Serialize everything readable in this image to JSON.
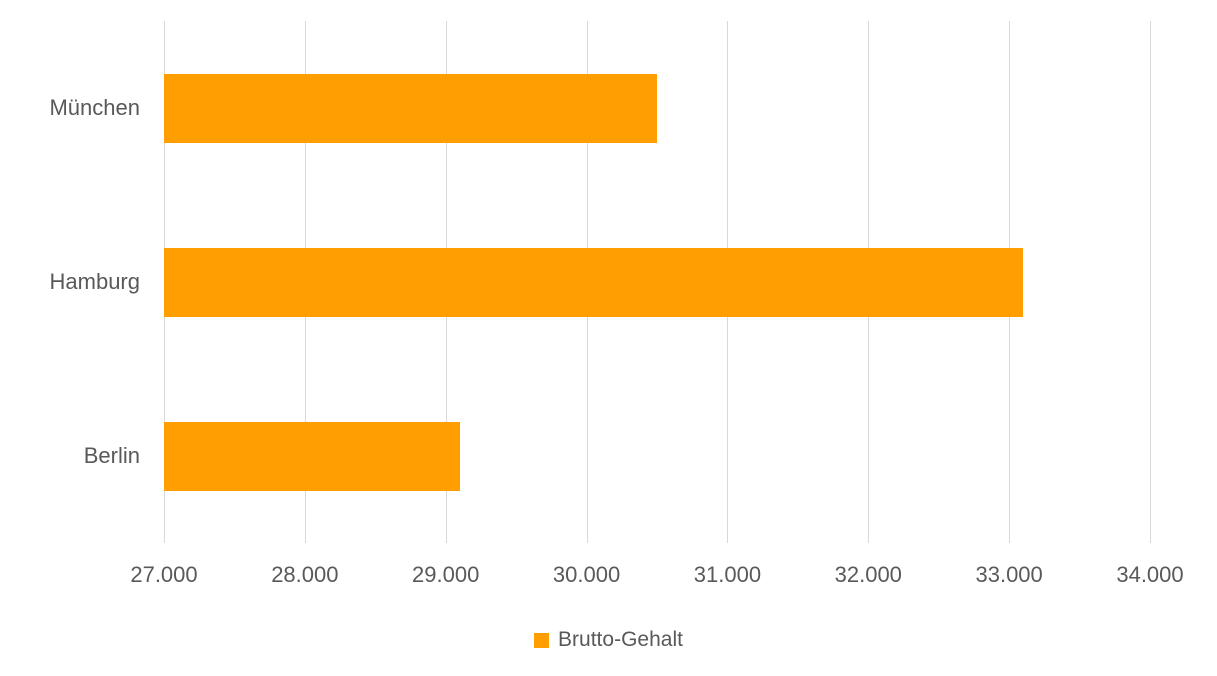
{
  "chart_data": {
    "type": "bar",
    "orientation": "horizontal",
    "title": "",
    "xlabel": "",
    "ylabel": "",
    "categories": [
      "München",
      "Hamburg",
      "Berlin"
    ],
    "series": [
      {
        "name": "Brutto-Gehalt",
        "values": [
          30500,
          33100,
          29100
        ]
      }
    ],
    "xlim": [
      27000,
      34000
    ],
    "x_tick_values": [
      27000,
      28000,
      29000,
      30000,
      31000,
      32000,
      33000,
      34000
    ],
    "x_tick_labels": [
      "27.000",
      "28.000",
      "29.000",
      "30.000",
      "31.000",
      "32.000",
      "33.000",
      "34.000"
    ],
    "grid": "vertical-gridlines-on",
    "legend": {
      "label": "Brutto-Gehalt",
      "position": "bottom-center"
    },
    "colors": {
      "bar": "#FF9E00",
      "gridline": "#D9D9D9",
      "text": "#595959",
      "background": "#FFFFFF"
    }
  }
}
